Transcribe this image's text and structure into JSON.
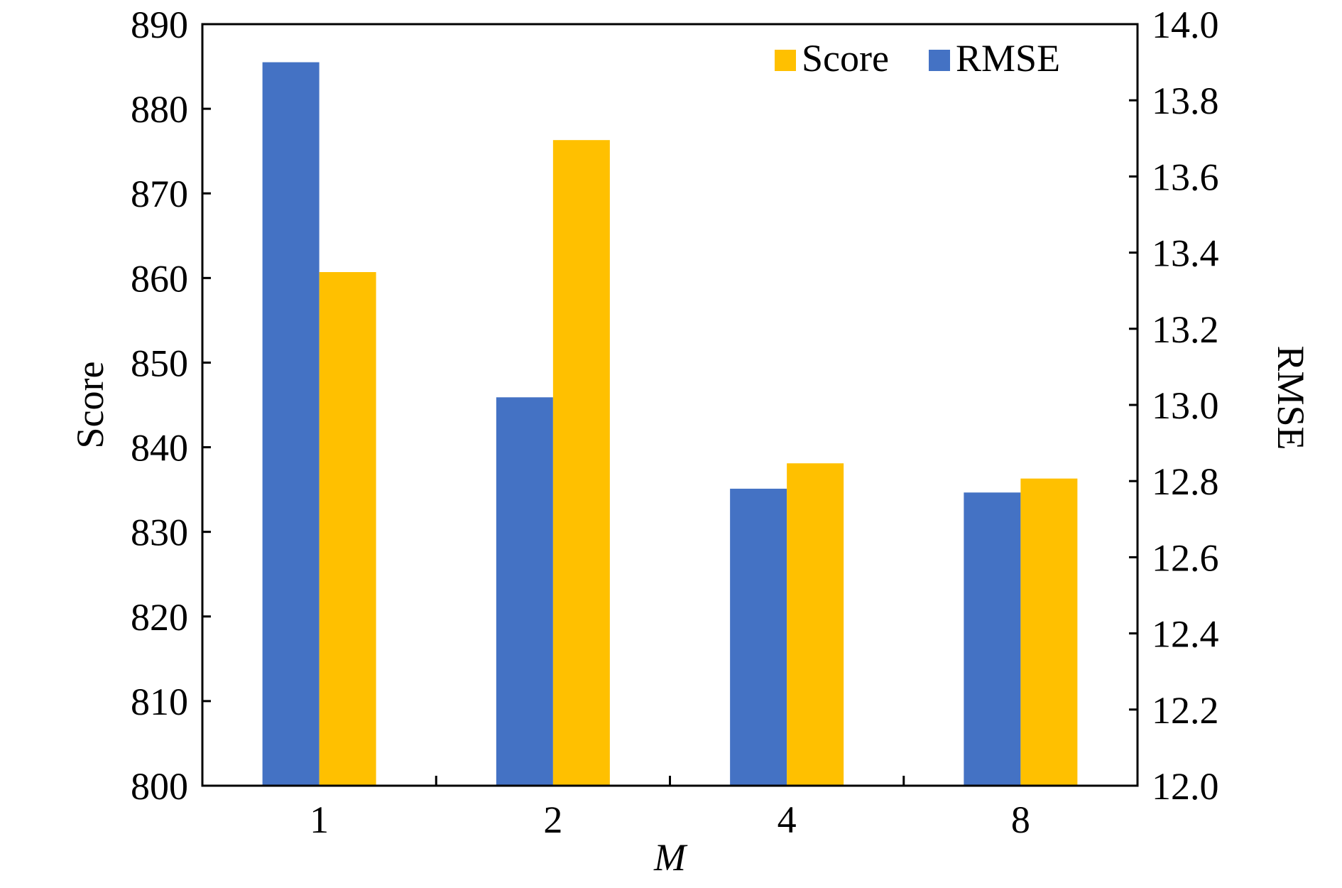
{
  "chart_data": {
    "type": "bar",
    "categories": [
      "1",
      "2",
      "4",
      "8"
    ],
    "xlabel": "M",
    "ylabel_left": "Score",
    "ylabel_right": "RMSE",
    "ylim_left": [
      800,
      890
    ],
    "ylim_right": [
      12.0,
      14.0
    ],
    "yticks_left": [
      "800",
      "810",
      "820",
      "830",
      "840",
      "850",
      "860",
      "870",
      "880",
      "890"
    ],
    "yticks_right": [
      "12.0",
      "12.2",
      "12.4",
      "12.6",
      "12.8",
      "13.0",
      "13.2",
      "13.4",
      "13.6",
      "13.8",
      "14.0"
    ],
    "legend_position": "top-right",
    "series": [
      {
        "name": "RMSE",
        "axis": "right",
        "color": "#4472C4",
        "values": [
          13.9,
          13.02,
          12.78,
          12.77
        ]
      },
      {
        "name": "Score",
        "axis": "left",
        "color": "#FFC000",
        "values": [
          860.7,
          876.3,
          838.1,
          836.3
        ]
      }
    ],
    "legend_order": [
      "Score",
      "RMSE"
    ]
  }
}
